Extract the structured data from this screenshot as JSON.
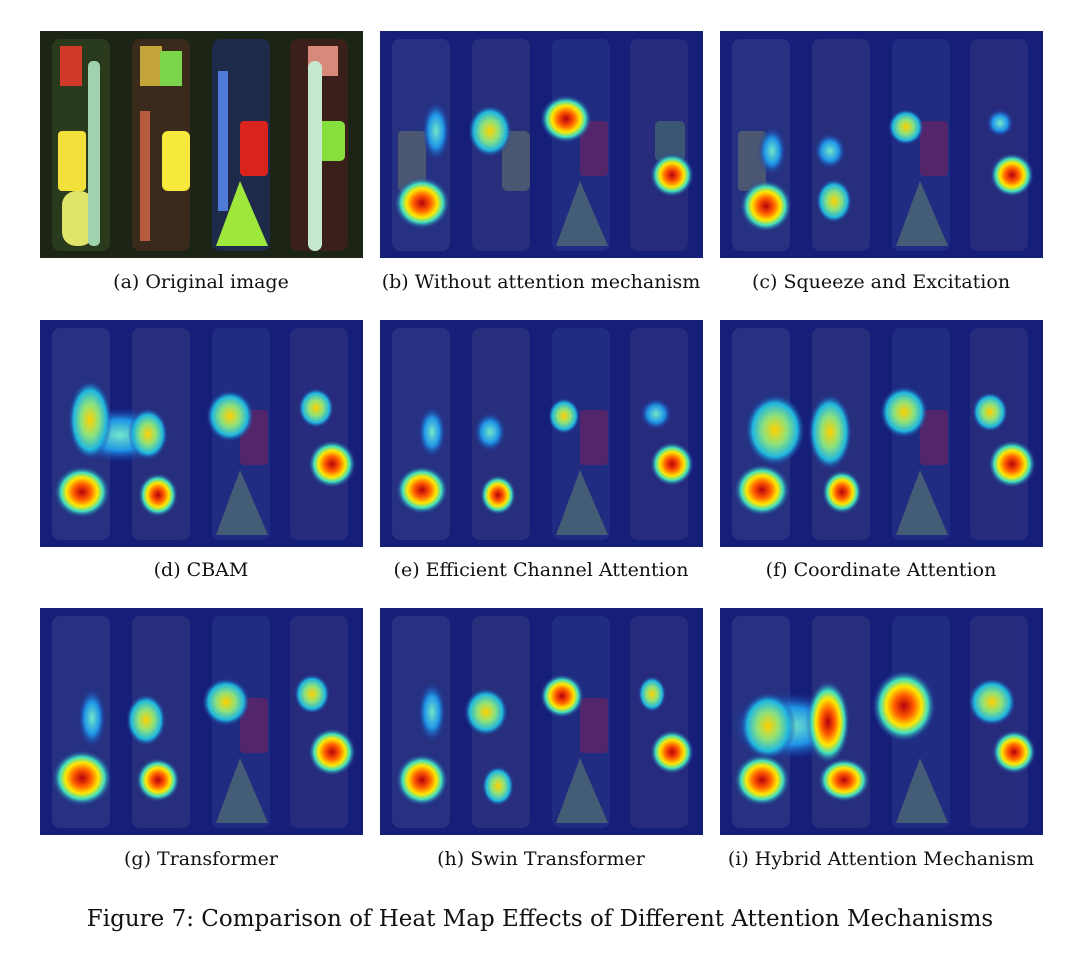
{
  "figure": {
    "caption": "Figure 7: Comparison of Heat Map Effects of Different Attention Mechanisms"
  },
  "panels": [
    {
      "caption": "(a) Original image",
      "kind": "original"
    },
    {
      "caption": "(b) Without attention mechanism",
      "kind": "heatmap",
      "level": 0
    },
    {
      "caption": "(c) Squeeze and Excitation",
      "kind": "heatmap",
      "level": 1
    },
    {
      "caption": "(d) CBAM",
      "kind": "heatmap",
      "level": 2
    },
    {
      "caption": "(e) Efficient Channel Attention",
      "kind": "heatmap",
      "level": 1
    },
    {
      "caption": "(f) Coordinate Attention",
      "kind": "heatmap",
      "level": 2
    },
    {
      "caption": "(g) Transformer",
      "kind": "heatmap",
      "level": 2
    },
    {
      "caption": "(h) Swin Transformer",
      "kind": "heatmap",
      "level": 1
    },
    {
      "caption": "(i) Hybrid Attention Mechanism",
      "kind": "heatmap",
      "level": 3
    }
  ]
}
